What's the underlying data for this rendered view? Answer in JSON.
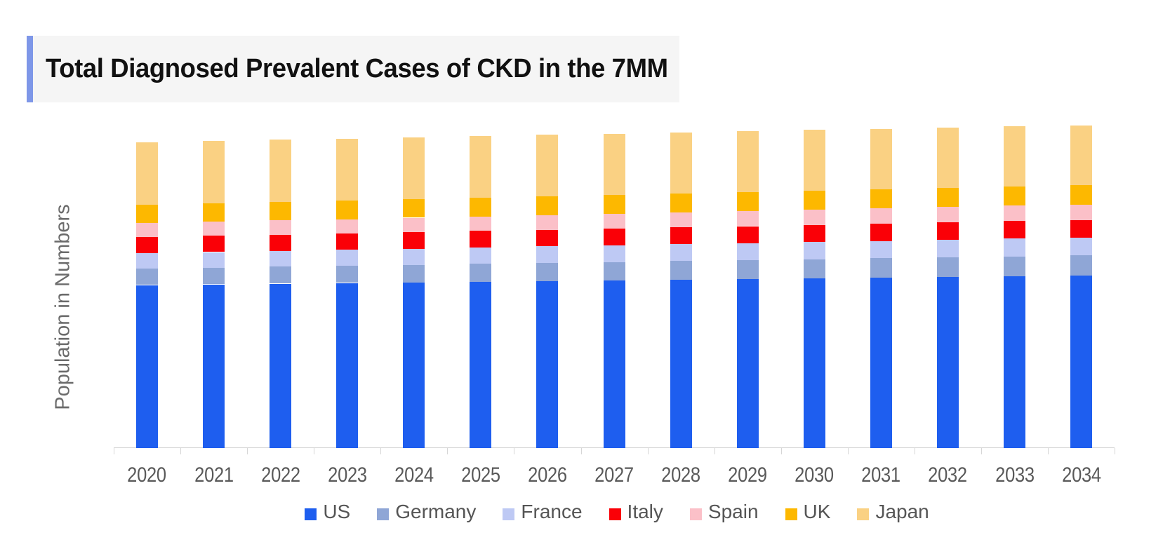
{
  "title": {
    "text": "Total Diagnosed Prevalent Cases of CKD in the 7MM"
  },
  "y_axis": {
    "label": "Population in Numbers"
  },
  "x_axis": {
    "tick_labels": [
      "2020",
      "2021",
      "2022",
      "2023",
      "2024",
      "2025",
      "2026",
      "2027",
      "2028",
      "2029",
      "2030",
      "2031",
      "2032",
      "2033",
      "2034"
    ]
  },
  "legend": {
    "position": "bottom",
    "items": [
      {
        "label": "US",
        "color": "#1E5EEF"
      },
      {
        "label": "Germany",
        "color": "#8FA6D6"
      },
      {
        "label": "France",
        "color": "#BEC9F4"
      },
      {
        "label": "Italy",
        "color": "#FA0007"
      },
      {
        "label": "Spain",
        "color": "#FBC0C8"
      },
      {
        "label": "UK",
        "color": "#FDB800"
      },
      {
        "label": "Japan",
        "color": "#FAD183"
      }
    ]
  },
  "colors": {
    "accent_bar": "#7E97E8",
    "title_background": "#F5F5F5",
    "axis_line": "#D6D6D6",
    "tick_label": "#595959",
    "legend_label": "#555555",
    "y_axis_label": "#6B6B6B",
    "title_text": "#111111",
    "background": "#FFFFFF"
  },
  "chart_data": {
    "type": "bar",
    "stacked": true,
    "grid": false,
    "legend_position": "bottom",
    "title": "Total Diagnosed Prevalent Cases of CKD in the 7MM",
    "xlabel": "",
    "ylabel": "Population in Numbers",
    "y_tick_labels_visible": false,
    "unit": "relative bar height, px (no numeric scale shown on axis)",
    "categories": [
      "2020",
      "2021",
      "2022",
      "2023",
      "2024",
      "2025",
      "2026",
      "2027",
      "2028",
      "2029",
      "2030",
      "2031",
      "2032",
      "2033",
      "2034"
    ],
    "series": [
      {
        "name": "US",
        "color": "#1E5EEF",
        "values": [
          232.6,
          233.6,
          234.6,
          235.6,
          236.5,
          237.5,
          238.5,
          239.4,
          240.4,
          241.4,
          242.4,
          243.3,
          244.3,
          245.3,
          246.2
        ]
      },
      {
        "name": "Germany",
        "color": "#8FA6D6",
        "values": [
          23.6,
          23.9,
          24.3,
          24.6,
          25.0,
          25.3,
          25.7,
          26.0,
          26.4,
          26.7,
          27.1,
          27.4,
          27.8,
          28.1,
          28.5
        ]
      },
      {
        "name": "France",
        "color": "#BEC9F4",
        "values": [
          21.8,
          22.1,
          22.3,
          22.6,
          22.9,
          23.2,
          23.5,
          23.8,
          24.0,
          24.3,
          24.6,
          24.9,
          25.2,
          25.5,
          25.7
        ]
      },
      {
        "name": "Italy",
        "color": "#FA0007",
        "values": [
          23.0,
          23.2,
          23.3,
          23.4,
          23.6,
          23.7,
          23.8,
          24.0,
          24.1,
          24.2,
          24.4,
          24.5,
          24.6,
          24.8,
          24.9
        ]
      },
      {
        "name": "Spain",
        "color": "#FBC0C8",
        "values": [
          20.0,
          20.1,
          20.3,
          20.4,
          20.6,
          20.7,
          20.9,
          21.1,
          21.2,
          21.4,
          21.5,
          21.7,
          21.8,
          22.0,
          22.2
        ]
      },
      {
        "name": "UK",
        "color": "#FDB800",
        "values": [
          26.1,
          26.2,
          26.3,
          26.5,
          26.6,
          26.7,
          26.9,
          27.0,
          27.1,
          27.2,
          27.4,
          27.5,
          27.6,
          27.8,
          27.9
        ]
      },
      {
        "name": "Japan",
        "color": "#FAD183",
        "values": [
          89.3,
          89.0,
          88.7,
          88.4,
          88.1,
          87.8,
          87.5,
          87.2,
          86.9,
          86.6,
          86.3,
          86.0,
          85.7,
          85.5,
          85.2
        ]
      }
    ]
  }
}
